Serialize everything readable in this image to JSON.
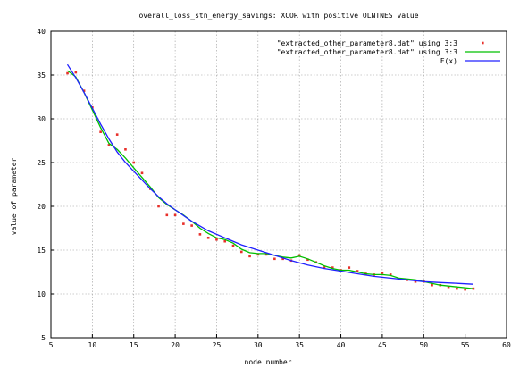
{
  "chart_data": {
    "type": "line",
    "title": "overall_loss_stn_energy_savings: XCOR with positive OLNTNES value",
    "xlabel": "node number",
    "ylabel": "value of parameter",
    "xlim": [
      5,
      60
    ],
    "ylim": [
      5,
      40
    ],
    "xticks": [
      5,
      10,
      15,
      20,
      25,
      30,
      35,
      40,
      45,
      50,
      55,
      60
    ],
    "yticks": [
      5,
      10,
      15,
      20,
      25,
      30,
      35,
      40
    ],
    "grid": true,
    "legend_position": "top-right",
    "series": [
      {
        "name": "\"extracted_other_parameter8.dat\" using 3:3",
        "style": "points",
        "color": "#e8302a",
        "x": [
          7,
          8,
          9,
          10,
          11,
          12,
          13,
          14,
          15,
          16,
          17,
          18,
          19,
          20,
          21,
          22,
          23,
          24,
          25,
          26,
          27,
          28,
          29,
          30,
          31,
          32,
          33,
          34,
          35,
          36,
          37,
          38,
          39,
          40,
          41,
          42,
          43,
          44,
          45,
          46,
          47,
          48,
          49,
          50,
          51,
          52,
          53,
          54,
          55,
          56
        ],
        "y": [
          35.2,
          35.3,
          33.2,
          31.3,
          28.5,
          27.0,
          28.2,
          26.5,
          25.0,
          23.8,
          22.0,
          20.0,
          19.0,
          19.0,
          18.0,
          17.8,
          16.8,
          16.4,
          16.2,
          16.0,
          15.5,
          14.8,
          14.3,
          14.5,
          14.5,
          14.0,
          14.0,
          13.8,
          14.4,
          13.9,
          13.6,
          13.0,
          13.0,
          12.7,
          13.0,
          12.6,
          12.3,
          12.2,
          12.4,
          12.2,
          11.7,
          11.6,
          11.4,
          11.4,
          11.0,
          11.0,
          10.8,
          10.6,
          10.5,
          10.6
        ]
      },
      {
        "name": "\"extracted_other_parameter8.dat\" using 3:3",
        "style": "line",
        "color": "#00c000",
        "x": [
          7,
          8,
          9,
          10,
          11,
          12,
          13,
          14,
          15,
          16,
          17,
          18,
          19,
          20,
          21,
          22,
          23,
          24,
          25,
          26,
          27,
          28,
          29,
          30,
          31,
          32,
          33,
          34,
          35,
          36,
          37,
          38,
          39,
          40,
          41,
          42,
          43,
          44,
          45,
          46,
          47,
          48,
          49,
          50,
          51,
          52,
          53,
          54,
          55,
          56
        ],
        "y": [
          35.5,
          34.8,
          33.0,
          31.0,
          29.0,
          27.2,
          26.5,
          25.5,
          24.4,
          23.3,
          22.2,
          21.0,
          20.2,
          19.6,
          19.0,
          18.3,
          17.5,
          16.9,
          16.4,
          16.2,
          15.8,
          15.1,
          14.7,
          14.6,
          14.6,
          14.4,
          14.2,
          14.1,
          14.3,
          14.0,
          13.6,
          13.2,
          12.9,
          12.7,
          12.7,
          12.5,
          12.3,
          12.2,
          12.2,
          12.1,
          11.8,
          11.7,
          11.6,
          11.4,
          11.2,
          11.0,
          10.9,
          10.8,
          10.7,
          10.6
        ]
      },
      {
        "name": "F(x)",
        "style": "line",
        "color": "#2020ff",
        "x": [
          7,
          8,
          9,
          10,
          11,
          12,
          13,
          14,
          15,
          16,
          17,
          18,
          19,
          20,
          22,
          24,
          26,
          28,
          30,
          32,
          34,
          36,
          38,
          40,
          42,
          44,
          46,
          48,
          50,
          52,
          54,
          56
        ],
        "y": [
          36.2,
          34.7,
          33.0,
          31.2,
          29.4,
          27.7,
          26.2,
          25.0,
          24.0,
          23.0,
          22.0,
          21.1,
          20.3,
          19.6,
          18.3,
          17.2,
          16.4,
          15.6,
          15.0,
          14.4,
          13.8,
          13.3,
          12.9,
          12.6,
          12.3,
          12.0,
          11.8,
          11.6,
          11.4,
          11.3,
          11.2,
          11.1
        ]
      }
    ]
  }
}
